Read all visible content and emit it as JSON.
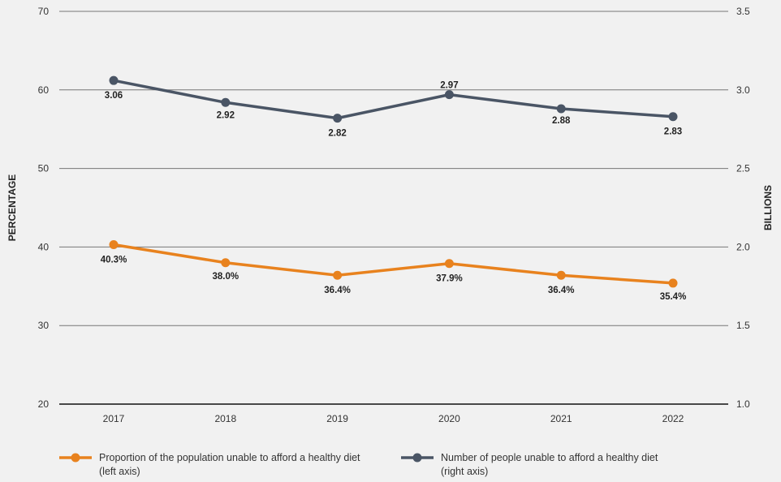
{
  "chart_data": {
    "type": "line",
    "categories": [
      "2017",
      "2018",
      "2019",
      "2020",
      "2021",
      "2022"
    ],
    "y_left": {
      "label": "PERCENTAGE",
      "min": 20,
      "max": 70,
      "ticks": [
        20,
        30,
        40,
        50,
        60,
        70
      ]
    },
    "y_right": {
      "label": "BILLIONS",
      "min": 1.0,
      "max": 3.5,
      "ticks": [
        "1.0",
        "1.5",
        "2.0",
        "2.5",
        "3.0",
        "3.5"
      ]
    },
    "grid": true,
    "series": [
      {
        "name": "Proportion of the population unable to afford a healthy diet",
        "name_line2": "(left axis)",
        "axis": "left",
        "color": "#e8821e",
        "values": [
          40.3,
          38.0,
          36.4,
          37.9,
          36.4,
          35.4
        ],
        "labels": [
          "40.3%",
          "38.0%",
          "36.4%",
          "37.9%",
          "36.4%",
          "35.4%"
        ]
      },
      {
        "name": "Number of people unable to afford a healthy diet",
        "name_line2": "(right axis)",
        "axis": "right",
        "color": "#4a5565",
        "values": [
          3.06,
          2.92,
          2.82,
          2.97,
          2.88,
          2.83
        ],
        "labels": [
          "3.06",
          "2.92",
          "2.82",
          "2.97",
          "2.88",
          "2.83"
        ]
      }
    ],
    "legend_position": "bottom"
  }
}
